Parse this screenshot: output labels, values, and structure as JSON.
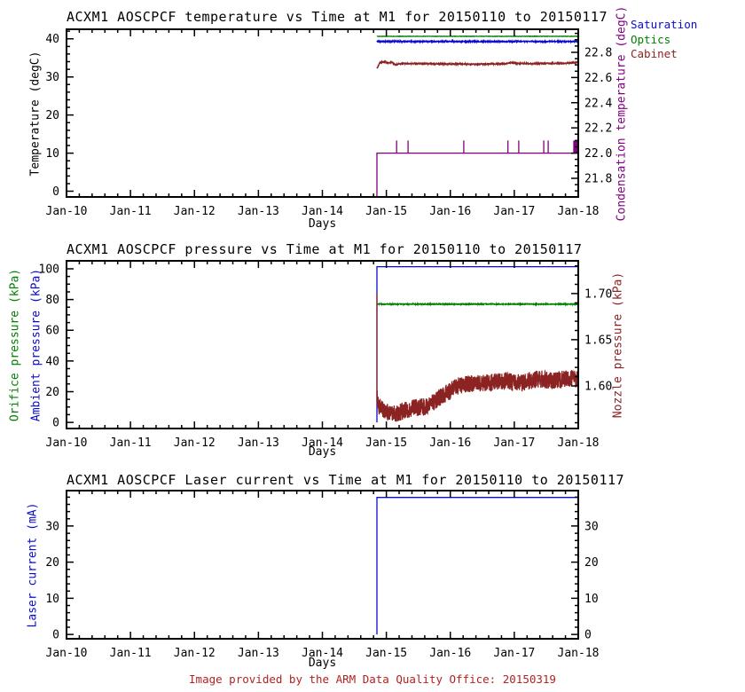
{
  "page": {
    "background": "#ffffff"
  },
  "footer": {
    "text": "Image provided by the ARM Data Quality Office: 20150319",
    "color": "#B22222"
  },
  "colors": {
    "blue": "#0A0ACF",
    "green": "#008000",
    "darkred": "#8B2323",
    "purple": "#800080",
    "black": "#000000"
  },
  "chart_data": [
    {
      "type": "line",
      "title": "ACXM1 AOSCPCF temperature vs Time at M1 for 20150110 to 20150117",
      "xlabel": "Days",
      "x_range": [
        0,
        8
      ],
      "x_tick_labels": [
        "Jan-10",
        "Jan-11",
        "Jan-12",
        "Jan-13",
        "Jan-14",
        "Jan-15",
        "Jan-16",
        "Jan-17",
        "Jan-18"
      ],
      "x_minor_div": 5,
      "left_axis": {
        "labels": [
          {
            "text": "Temperature (degC)",
            "color": "#000000"
          }
        ],
        "range": [
          -1.5,
          42.5
        ],
        "ticks": [
          0,
          10,
          20,
          30,
          40
        ],
        "tick_labels": [
          "0",
          "10",
          "20",
          "30",
          "40"
        ],
        "minor_div": 5
      },
      "right_axis": {
        "label": {
          "text": "Condensation temperature (degC)",
          "color": "#800080"
        },
        "range": [
          21.652,
          22.983
        ],
        "ticks": [
          21.8,
          22.0,
          22.2,
          22.4,
          22.6,
          22.8
        ],
        "tick_labels": [
          "21.8",
          "22.0",
          "22.2",
          "22.4",
          "22.6",
          "22.8"
        ],
        "minor_div": 4
      },
      "legend": {
        "items": [
          {
            "label": "Saturation",
            "color": "#0A0ACF"
          },
          {
            "label": "Optics",
            "color": "#008000"
          },
          {
            "label": "Cabinet",
            "color": "#8B2323"
          }
        ]
      },
      "series": [
        {
          "name": "Saturation",
          "color": "#0A0ACF",
          "axis": "left",
          "noise": 0.13,
          "samples": 1100,
          "points": [
            [
              4.853,
              39.3
            ],
            [
              8,
              39.3
            ]
          ]
        },
        {
          "name": "Optics",
          "color": "#008000",
          "axis": "left",
          "noise": 0.05,
          "samples": 600,
          "points": [
            [
              4.853,
              40.65
            ],
            [
              8,
              40.65
            ]
          ]
        },
        {
          "name": "Cabinet",
          "color": "#8B2323",
          "axis": "left",
          "noise": 0.14,
          "samples": 1100,
          "points": [
            [
              4.853,
              32.2
            ],
            [
              4.9,
              33.8
            ],
            [
              4.97,
              34.0
            ],
            [
              5.03,
              33.6
            ],
            [
              5.08,
              33.9
            ],
            [
              5.14,
              33.2
            ],
            [
              5.25,
              33.5
            ],
            [
              5.6,
              33.45
            ],
            [
              6.0,
              33.4
            ],
            [
              6.5,
              33.35
            ],
            [
              6.85,
              33.45
            ],
            [
              6.95,
              33.75
            ],
            [
              7.05,
              33.55
            ],
            [
              7.3,
              33.5
            ],
            [
              7.6,
              33.55
            ],
            [
              7.85,
              33.6
            ],
            [
              8.0,
              33.85
            ]
          ]
        },
        {
          "name": "Condensation",
          "color": "#800080",
          "axis": "right",
          "noise": 0,
          "samples": 40,
          "start_vertical": [
            4.853,
            21.652,
            22.0
          ],
          "points": [
            [
              4.853,
              22.0
            ],
            [
              8,
              22.0
            ]
          ],
          "spikes": {
            "baseline": 22.0,
            "top": 22.1,
            "days": [
              5.16,
              5.34,
              6.21,
              6.9,
              7.07,
              7.46,
              7.53,
              7.93,
              7.945,
              7.962,
              7.975,
              7.99
            ]
          }
        }
      ]
    },
    {
      "type": "line",
      "title": "ACXM1 AOSCPCF pressure vs Time at M1 for 20150110 to 20150117",
      "xlabel": "Days",
      "x_range": [
        0,
        8
      ],
      "x_tick_labels": [
        "Jan-10",
        "Jan-11",
        "Jan-12",
        "Jan-13",
        "Jan-14",
        "Jan-15",
        "Jan-16",
        "Jan-17",
        "Jan-18"
      ],
      "x_minor_div": 5,
      "left_axis": {
        "labels": [
          {
            "text": "Orifice pressure (kPa)",
            "color": "#008000"
          },
          {
            "text": "Ambient pressure (kPa)",
            "color": "#0A0ACF"
          }
        ],
        "range": [
          -4,
          105.2
        ],
        "ticks": [
          0,
          20,
          40,
          60,
          80,
          100
        ],
        "tick_labels": [
          "0",
          "20",
          "40",
          "60",
          "80",
          "100"
        ],
        "minor_div": 4
      },
      "right_axis": {
        "label": {
          "text": "Nozzle pressure (kPa)",
          "color": "#8B2323"
        },
        "range": [
          1.5538,
          1.7355
        ],
        "ticks": [
          1.6,
          1.65,
          1.7
        ],
        "tick_labels": [
          "1.60",
          "1.65",
          "1.70"
        ],
        "minor_div": 5
      },
      "series": [
        {
          "name": "Ambient pressure",
          "color": "#0A0ACF",
          "axis": "left",
          "noise": 0,
          "samples": 40,
          "start_vertical": [
            4.853,
            0,
            101.4
          ],
          "points": [
            [
              4.853,
              101.4
            ],
            [
              8,
              101.4
            ]
          ]
        },
        {
          "name": "Orifice pressure",
          "color": "#008000",
          "axis": "left",
          "noise": 0.3,
          "samples": 900,
          "points": [
            [
              4.853,
              77.0
            ],
            [
              8,
              77.0
            ]
          ]
        },
        {
          "name": "Nozzle pressure",
          "color": "#8B2323",
          "axis": "right",
          "noise": 0.0095,
          "samples": 1400,
          "start_vertical": [
            4.853,
            1.7,
            1.588
          ],
          "points": [
            [
              4.853,
              1.588
            ],
            [
              4.88,
              1.578
            ],
            [
              4.95,
              1.5735
            ],
            [
              5.05,
              1.5705
            ],
            [
              5.15,
              1.5705
            ],
            [
              5.3,
              1.5735
            ],
            [
              5.45,
              1.576
            ],
            [
              5.6,
              1.5775
            ],
            [
              5.72,
              1.582
            ],
            [
              5.85,
              1.588
            ],
            [
              5.95,
              1.5925
            ],
            [
              6.05,
              1.597
            ],
            [
              6.15,
              1.6005
            ],
            [
              6.3,
              1.6025
            ],
            [
              6.45,
              1.6035
            ],
            [
              6.6,
              1.603
            ],
            [
              6.75,
              1.605
            ],
            [
              6.88,
              1.6055
            ],
            [
              7.0,
              1.6035
            ],
            [
              7.12,
              1.603
            ],
            [
              7.28,
              1.6065
            ],
            [
              7.42,
              1.6075
            ],
            [
              7.55,
              1.6055
            ],
            [
              7.7,
              1.6065
            ],
            [
              7.85,
              1.6085
            ],
            [
              8.0,
              1.607
            ]
          ]
        }
      ]
    },
    {
      "type": "line",
      "title": "ACXM1 AOSCPCF Laser current vs Time at M1 for 20150110 to 20150117",
      "xlabel": "Days",
      "x_range": [
        0,
        8
      ],
      "x_tick_labels": [
        "Jan-10",
        "Jan-11",
        "Jan-12",
        "Jan-13",
        "Jan-14",
        "Jan-15",
        "Jan-16",
        "Jan-17",
        "Jan-18"
      ],
      "x_minor_div": 5,
      "left_axis": {
        "labels": [
          {
            "text": "Laser current (mA)",
            "color": "#0A0ACF"
          }
        ],
        "range": [
          -1.2,
          39.8
        ],
        "ticks": [
          0,
          10,
          20,
          30
        ],
        "tick_labels": [
          "0",
          "10",
          "20",
          "30"
        ],
        "minor_div": 5
      },
      "right_axis": {
        "label": null,
        "range": [
          -1.2,
          39.8
        ],
        "ticks": [
          0,
          10,
          20,
          30
        ],
        "tick_labels": [
          "0",
          "10",
          "20",
          "30"
        ],
        "minor_div": 5
      },
      "series": [
        {
          "name": "Laser current",
          "color": "#0A0ACF",
          "axis": "left",
          "noise": 0,
          "samples": 40,
          "start_vertical": [
            4.853,
            0,
            37.9
          ],
          "points": [
            [
              4.853,
              37.9
            ],
            [
              8,
              37.9
            ]
          ]
        }
      ]
    }
  ]
}
